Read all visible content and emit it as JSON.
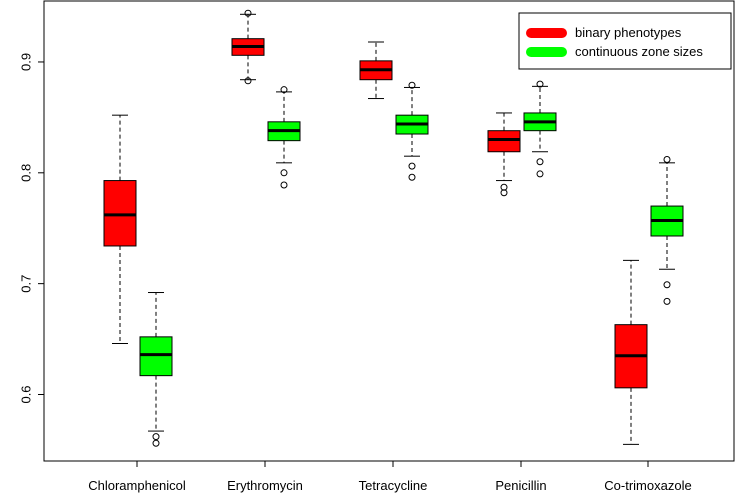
{
  "chart_data": {
    "type": "boxplot",
    "title": "",
    "xlabel": "",
    "ylabel": "",
    "ylim": [
      0.54,
      0.955
    ],
    "yticks": [
      0.6,
      0.7,
      0.8,
      0.9
    ],
    "ytick_labels": [
      "0.6",
      "0.7",
      "0.8",
      "0.9"
    ],
    "categories": [
      "Chloramphenicol",
      "Erythromycin",
      "Tetracycline",
      "Penicillin",
      "Co-trimoxazole"
    ],
    "legend_position": "top-right",
    "series": [
      {
        "name": "binary phenotypes",
        "color": "#ff0000",
        "boxes": [
          {
            "whisker_low": 0.646,
            "q1": 0.734,
            "median": 0.762,
            "q3": 0.793,
            "whisker_high": 0.852,
            "outliers": []
          },
          {
            "whisker_low": 0.884,
            "q1": 0.906,
            "median": 0.914,
            "q3": 0.921,
            "whisker_high": 0.943,
            "outliers": [
              0.944,
              0.883
            ]
          },
          {
            "whisker_low": 0.867,
            "q1": 0.884,
            "median": 0.893,
            "q3": 0.901,
            "whisker_high": 0.918,
            "outliers": []
          },
          {
            "whisker_low": 0.793,
            "q1": 0.819,
            "median": 0.83,
            "q3": 0.838,
            "whisker_high": 0.854,
            "outliers": [
              0.787,
              0.782
            ]
          },
          {
            "whisker_low": 0.555,
            "q1": 0.606,
            "median": 0.635,
            "q3": 0.663,
            "whisker_high": 0.721,
            "outliers": []
          }
        ]
      },
      {
        "name": "continuous zone sizes",
        "color": "#00ff00",
        "boxes": [
          {
            "whisker_low": 0.567,
            "q1": 0.617,
            "median": 0.636,
            "q3": 0.652,
            "whisker_high": 0.692,
            "outliers": [
              0.562,
              0.556
            ]
          },
          {
            "whisker_low": 0.809,
            "q1": 0.829,
            "median": 0.838,
            "q3": 0.846,
            "whisker_high": 0.873,
            "outliers": [
              0.875,
              0.8,
              0.789
            ]
          },
          {
            "whisker_low": 0.815,
            "q1": 0.835,
            "median": 0.844,
            "q3": 0.852,
            "whisker_high": 0.877,
            "outliers": [
              0.879,
              0.806,
              0.796
            ]
          },
          {
            "whisker_low": 0.819,
            "q1": 0.838,
            "median": 0.846,
            "q3": 0.854,
            "whisker_high": 0.878,
            "outliers": [
              0.88,
              0.81,
              0.799
            ]
          },
          {
            "whisker_low": 0.713,
            "q1": 0.743,
            "median": 0.757,
            "q3": 0.77,
            "whisker_high": 0.809,
            "outliers": [
              0.812,
              0.699,
              0.684
            ]
          }
        ]
      }
    ]
  }
}
